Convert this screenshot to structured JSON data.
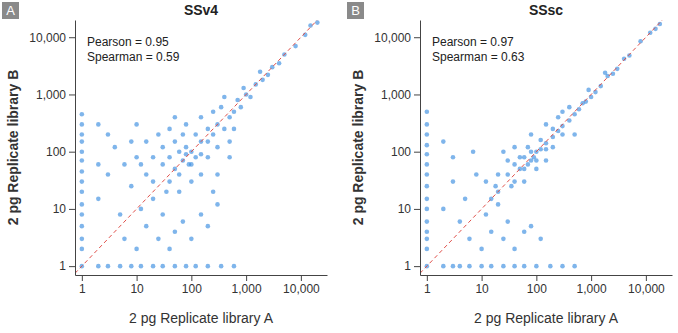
{
  "chart_data": [
    {
      "type": "scatter",
      "panel_label": "A",
      "title": "SSv4",
      "x_label": "2 pg Replicate library A",
      "y_label": "2 pg Replicate library B",
      "annotations": [
        "Pearson = 0.95",
        "Spearman = 0.59"
      ],
      "log": true,
      "grid": false,
      "color": "#3a8ee0",
      "xlim": [
        0.75,
        30000
      ],
      "ylim": [
        0.7,
        20000
      ],
      "xticks": [
        1,
        10,
        100,
        {
          "value": 1000,
          "label": "1,000"
        },
        {
          "value": 10000,
          "label": "10,000"
        }
      ],
      "yticks": [
        1,
        10,
        100,
        {
          "value": 1000,
          "label": "1,000"
        },
        {
          "value": 10000,
          "label": "10,000"
        }
      ],
      "x": [
        1,
        1,
        1,
        1,
        1,
        1,
        1,
        1,
        1,
        1,
        1,
        1,
        1,
        1,
        1,
        2,
        3,
        5,
        8,
        12,
        20,
        30,
        50,
        80,
        120,
        200,
        350,
        600,
        2,
        3,
        5,
        4,
        2,
        6,
        10,
        15,
        25,
        40,
        8,
        12,
        3,
        20,
        30,
        50,
        70,
        100,
        150,
        200,
        300,
        6,
        15,
        2,
        10,
        30,
        40,
        50,
        60,
        70,
        80,
        90,
        100,
        120,
        150,
        40,
        50,
        60,
        70,
        80,
        100,
        120,
        150,
        200,
        200,
        250,
        300,
        30,
        20,
        20,
        35,
        60,
        100,
        150,
        25,
        40,
        80,
        200,
        300,
        400,
        500,
        250,
        350,
        600,
        700,
        800,
        1000,
        1200,
        900,
        1500,
        2000,
        1800,
        2500,
        3000,
        4000,
        5000,
        8000,
        12000,
        15000,
        20000,
        500,
        600,
        400,
        150,
        10,
        15,
        12,
        8,
        300,
        500,
        250,
        50
      ],
      "values": [
        1,
        2,
        3,
        5,
        8,
        12,
        20,
        30,
        45,
        70,
        100,
        150,
        200,
        300,
        450,
        1,
        1,
        1,
        1,
        1,
        1,
        1,
        1,
        1,
        1,
        1,
        1,
        1,
        15,
        40,
        8,
        120,
        300,
        3,
        2,
        5,
        3,
        2,
        25,
        60,
        200,
        15,
        8,
        4,
        6,
        3,
        8,
        5,
        12,
        60,
        150,
        60,
        300,
        60,
        80,
        50,
        100,
        70,
        120,
        60,
        100,
        80,
        150,
        30,
        150,
        40,
        200,
        90,
        60,
        200,
        90,
        150,
        250,
        200,
        300,
        120,
        80,
        30,
        20,
        20,
        30,
        40,
        200,
        250,
        300,
        80,
        120,
        250,
        400,
        500,
        600,
        500,
        800,
        600,
        1000,
        900,
        1300,
        1500,
        1800,
        2500,
        2200,
        3000,
        3500,
        5000,
        7000,
        11000,
        16000,
        18000,
        150,
        250,
        900,
        400,
        80,
        40,
        10,
        150,
        40,
        80,
        20,
        400
      ]
    },
    {
      "type": "scatter",
      "panel_label": "B",
      "title": "SSsc",
      "x_label": "2 pg Replicate library A",
      "y_label": "2 pg Replicate library B",
      "annotations": [
        "Pearson = 0.97",
        "Spearman = 0.63"
      ],
      "log": true,
      "grid": false,
      "color": "#3a8ee0",
      "xlim": [
        0.75,
        30000
      ],
      "ylim": [
        0.7,
        20000
      ],
      "xticks": [
        1,
        10,
        100,
        {
          "value": 1000,
          "label": "1,000"
        },
        {
          "value": 10000,
          "label": "10,000"
        }
      ],
      "yticks": [
        1,
        10,
        100,
        {
          "value": 1000,
          "label": "1,000"
        },
        {
          "value": 10000,
          "label": "10,000"
        }
      ],
      "x": [
        1,
        1,
        1,
        1,
        1,
        1,
        1,
        1,
        1,
        1,
        1,
        1,
        1,
        1,
        1,
        2,
        3,
        4,
        6,
        10,
        15,
        25,
        40,
        60,
        100,
        180,
        300,
        500,
        2,
        3,
        4,
        6,
        10,
        15,
        25,
        40,
        5,
        8,
        3,
        12,
        20,
        30,
        2,
        60,
        80,
        120,
        7,
        18,
        30,
        40,
        50,
        60,
        70,
        80,
        90,
        100,
        120,
        150,
        40,
        50,
        60,
        70,
        80,
        100,
        120,
        150,
        200,
        200,
        250,
        300,
        30,
        20,
        20,
        35,
        60,
        100,
        150,
        25,
        40,
        80,
        200,
        300,
        400,
        500,
        300,
        400,
        600,
        700,
        800,
        1000,
        1200,
        900,
        1500,
        2000,
        1800,
        2500,
        3000,
        4000,
        5000,
        8000,
        12000,
        15000,
        18000,
        500,
        250,
        150,
        12,
        15
      ],
      "values": [
        1,
        2,
        3,
        4,
        6,
        10,
        15,
        25,
        40,
        60,
        90,
        130,
        200,
        300,
        500,
        1,
        1,
        1,
        1,
        1,
        1,
        1,
        1,
        1,
        1,
        1,
        1,
        1,
        10,
        30,
        6,
        3,
        2,
        4,
        3,
        2,
        15,
        40,
        80,
        8,
        12,
        6,
        150,
        4,
        5,
        3,
        100,
        25,
        40,
        60,
        50,
        80,
        60,
        100,
        80,
        100,
        110,
        140,
        30,
        80,
        50,
        120,
        70,
        70,
        160,
        110,
        180,
        250,
        230,
        280,
        70,
        40,
        20,
        25,
        30,
        50,
        70,
        100,
        120,
        200,
        120,
        200,
        350,
        450,
        500,
        600,
        550,
        700,
        750,
        900,
        1100,
        1200,
        1400,
        2100,
        2400,
        2300,
        2800,
        4200,
        4800,
        8500,
        12000,
        14000,
        17000,
        200,
        400,
        300,
        30,
        15
      ]
    }
  ]
}
